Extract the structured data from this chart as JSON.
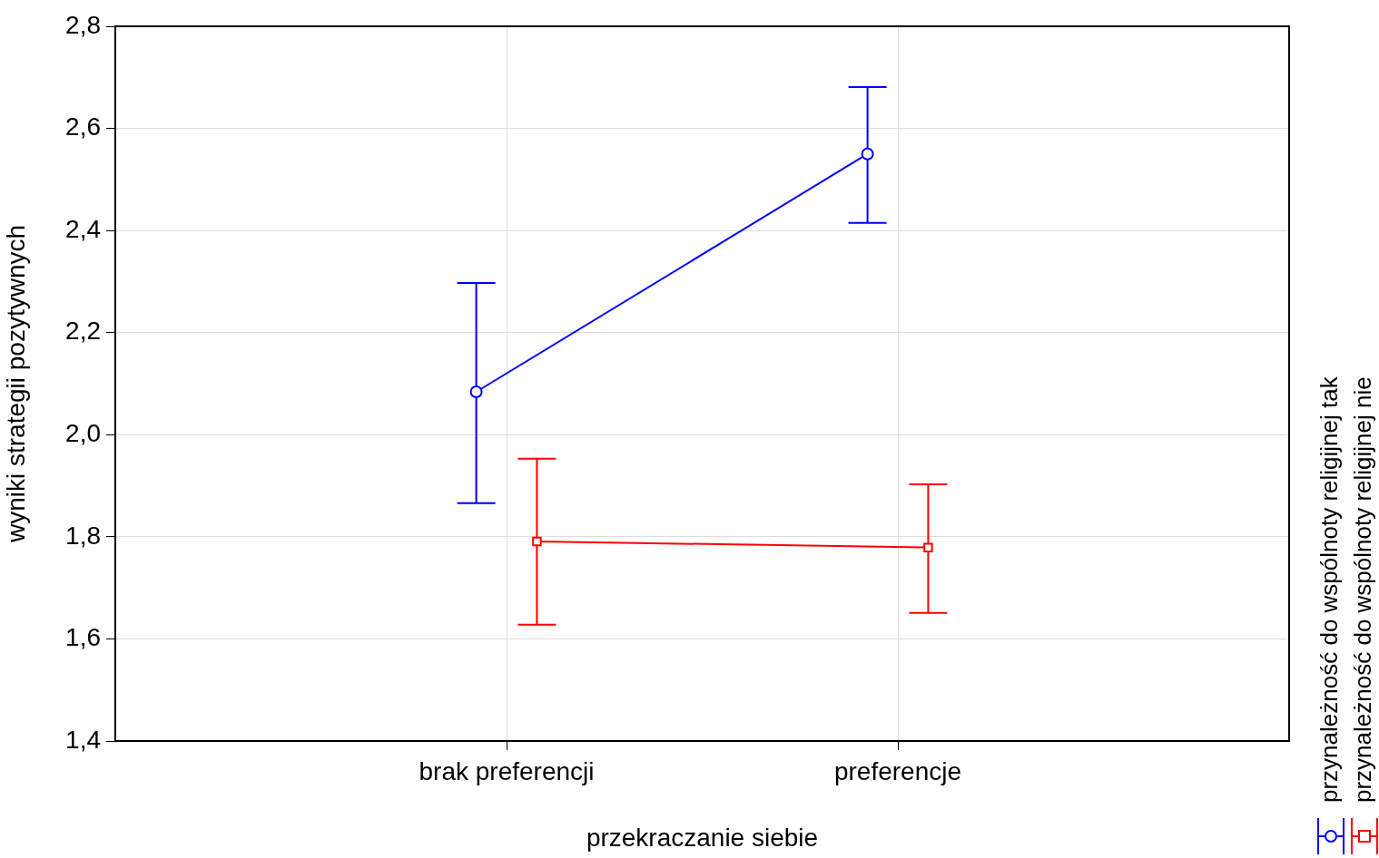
{
  "chart_data": {
    "type": "line",
    "xlabel": "przekraczanie siebie",
    "ylabel": "wyniki strategii pozytywnych",
    "categories": [
      "brak preferencji",
      "preferencje"
    ],
    "series": [
      {
        "name": "przynależność do wspólnoty religijnej tak",
        "color": "#0000ff",
        "marker": "circle",
        "values": [
          2.084,
          2.55
        ],
        "errors": [
          [
            1.866,
            2.297
          ],
          [
            2.415,
            2.681
          ]
        ]
      },
      {
        "name": "przynależność do wspólnoty religijnej nie",
        "color": "#ff0000",
        "marker": "square",
        "values": [
          1.791,
          1.779
        ],
        "errors": [
          [
            1.628,
            1.953
          ],
          [
            1.651,
            1.903
          ]
        ]
      }
    ],
    "ylim": [
      1.4,
      2.8
    ],
    "yticks": [
      {
        "value": 1.4,
        "label": "1,4"
      },
      {
        "value": 1.6,
        "label": "1,6"
      },
      {
        "value": 1.8,
        "label": "1,8"
      },
      {
        "value": 2.0,
        "label": "2,0"
      },
      {
        "value": 2.2,
        "label": "2,2"
      },
      {
        "value": 2.4,
        "label": "2,4"
      },
      {
        "value": 2.6,
        "label": "2,6"
      },
      {
        "value": 2.8,
        "label": "2,8"
      }
    ],
    "grid": true,
    "legend": "right",
    "line_style": "solid"
  }
}
